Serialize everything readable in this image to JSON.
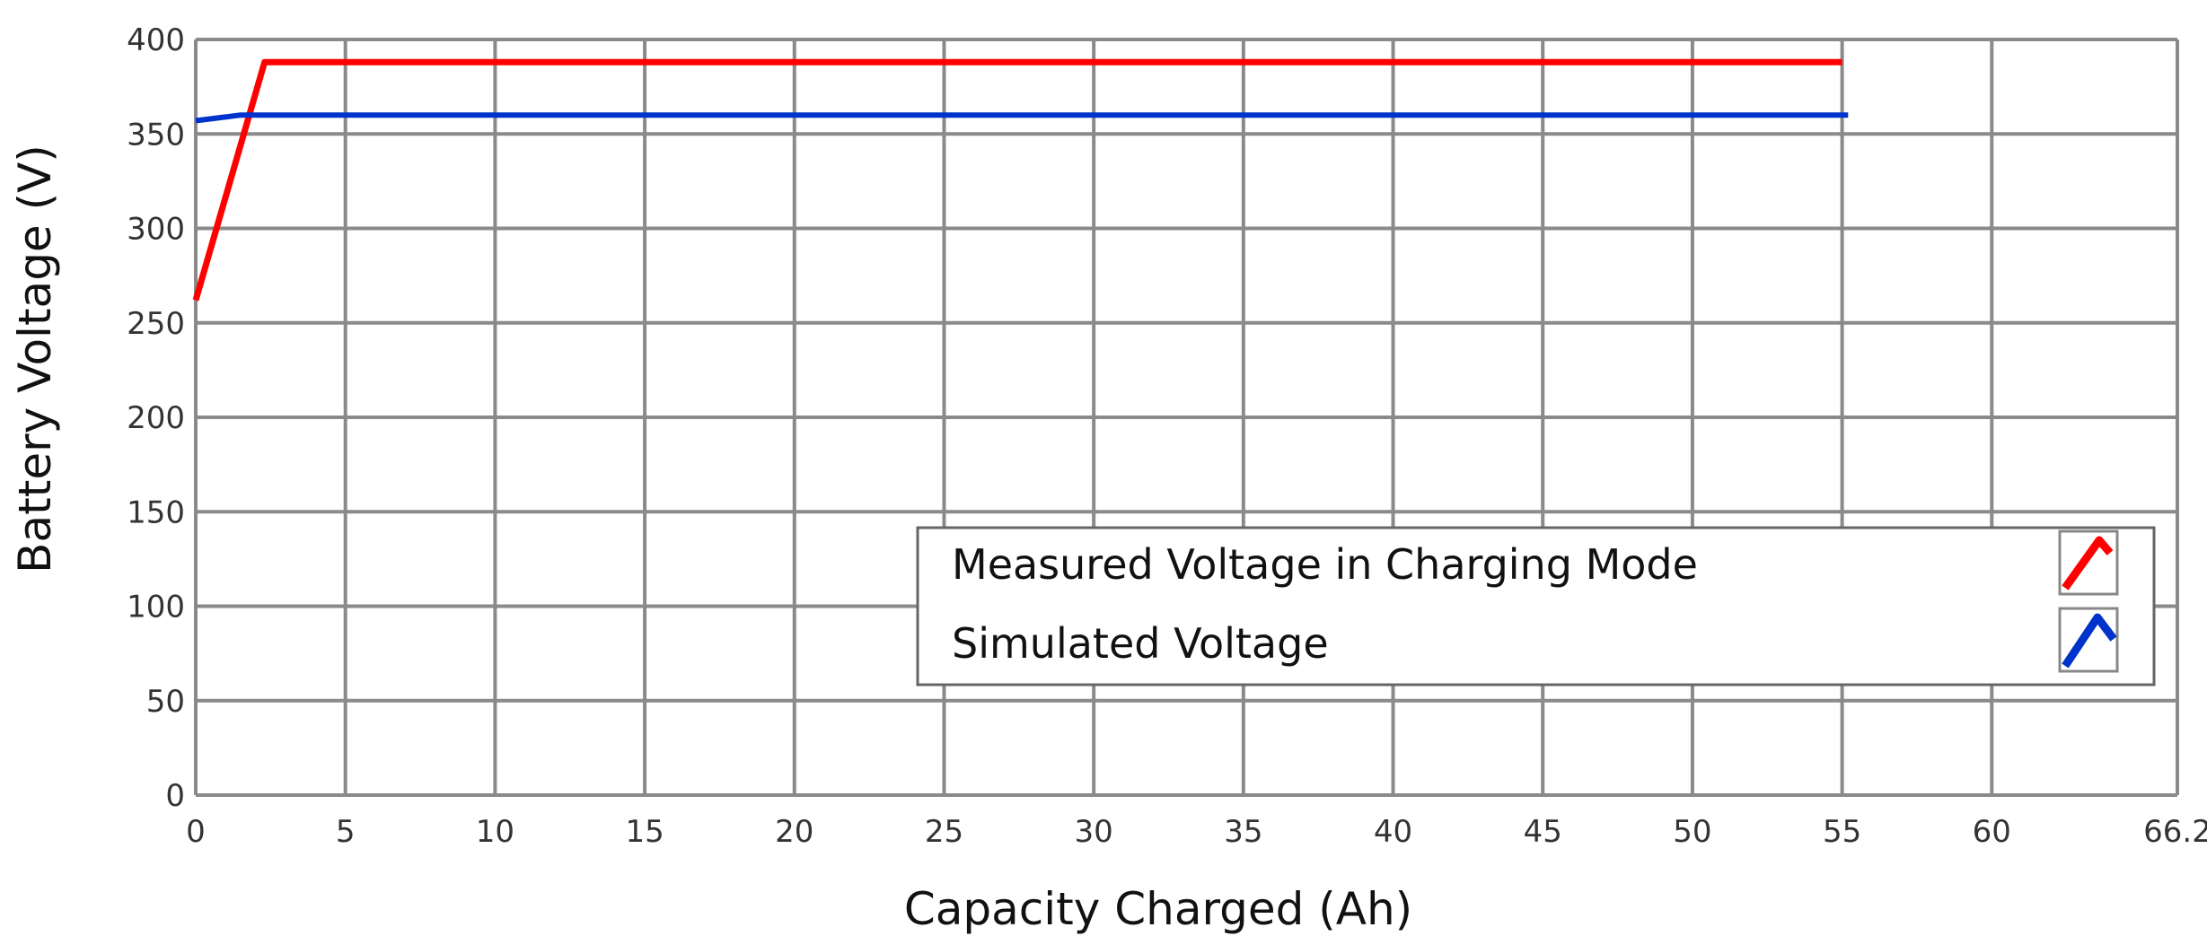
{
  "chart_data": {
    "type": "line",
    "title": "",
    "xlabel": "Capacity Charged (Ah)",
    "ylabel": "Battery Voltage (V)",
    "xlim": [
      0,
      66.2
    ],
    "ylim": [
      0,
      400
    ],
    "x_ticks": [
      0,
      5,
      10,
      15,
      20,
      25,
      30,
      35,
      40,
      45,
      50,
      55,
      60,
      66.2
    ],
    "x_tick_labels": [
      "0",
      "5",
      "10",
      "15",
      "20",
      "25",
      "30",
      "35",
      "40",
      "45",
      "50",
      "55",
      "60",
      "66.2"
    ],
    "y_ticks": [
      0,
      50,
      100,
      150,
      200,
      250,
      300,
      350,
      400
    ],
    "y_tick_labels": [
      "0",
      "50",
      "100",
      "150",
      "200",
      "250",
      "300",
      "350",
      "400"
    ],
    "grid": true,
    "legend_position": "bottom-right",
    "series": [
      {
        "name": "Measured Voltage in Charging Mode",
        "color": "#ff0000",
        "x": [
          0,
          2.3,
          55
        ],
        "y": [
          262,
          388,
          388
        ]
      },
      {
        "name": "Simulated Voltage",
        "color": "#0033cc",
        "x": [
          0,
          1.5,
          55.2
        ],
        "y": [
          357,
          360,
          360
        ]
      }
    ]
  }
}
